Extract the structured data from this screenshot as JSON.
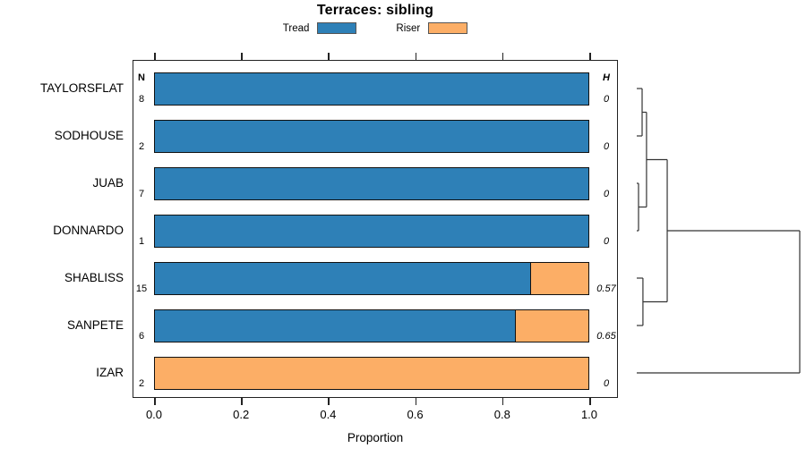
{
  "chart_data": {
    "type": "bar",
    "orientation": "horizontal",
    "stacked": true,
    "title": "Terraces: sibling",
    "categories": [
      "TAYLORSFLAT",
      "SODHOUSE",
      "JUAB",
      "DONNARDO",
      "SHABLISS",
      "SANPETE",
      "IZAR"
    ],
    "series": [
      {
        "name": "Tread",
        "color": "#2e80b7",
        "values": [
          1.0,
          1.0,
          1.0,
          1.0,
          0.867,
          0.833,
          0.0
        ]
      },
      {
        "name": "Riser",
        "color": "#fcae66",
        "values": [
          0.0,
          0.0,
          0.0,
          0.0,
          0.133,
          0.167,
          1.0
        ]
      }
    ],
    "annotations": {
      "n_header": "N",
      "n_values": [
        "8",
        "2",
        "7",
        "1",
        "15",
        "6",
        "2"
      ],
      "h_header": "H",
      "h_values": [
        "0",
        "0",
        "0",
        "0",
        "0.57",
        "0.65",
        "0"
      ]
    },
    "xlabel": "Proportion",
    "xlim": [
      0,
      1
    ],
    "xticks": [
      "0.0",
      "0.2",
      "0.4",
      "0.6",
      "0.8",
      "1.0"
    ],
    "grid": false,
    "legend_position": "top",
    "dendrogram": {
      "axis": "right",
      "tree": {
        "h": 1.0,
        "children": [
          {
            "h": 0.187,
            "children": [
              {
                "h": 0.06,
                "children": [
                  {
                    "h": 0.033,
                    "children": [
                      "TAYLORSFLAT",
                      "SODHOUSE"
                    ]
                  },
                  {
                    "h": 0.011,
                    "children": [
                      "JUAB",
                      "DONNARDO"
                    ]
                  }
                ]
              },
              {
                "h": 0.038,
                "children": [
                  "SHABLISS",
                  "SANPETE"
                ]
              }
            ]
          },
          "IZAR"
        ]
      }
    }
  }
}
